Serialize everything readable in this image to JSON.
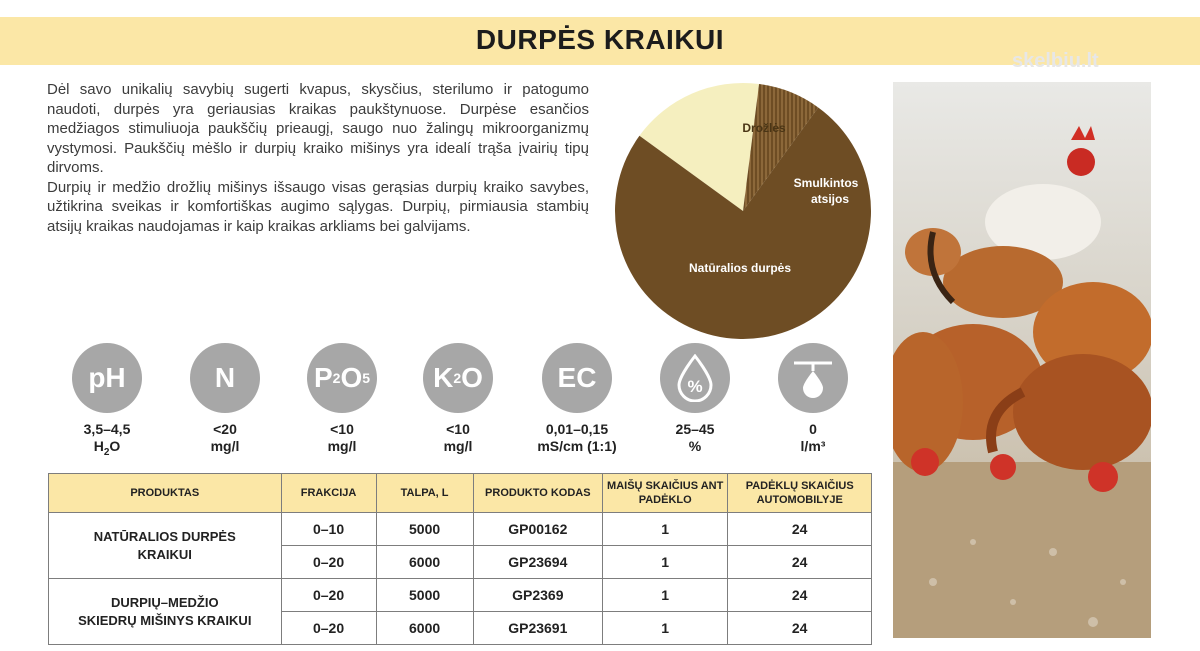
{
  "header": {
    "title": "DURPĖS KRAIKUI"
  },
  "watermark": "skelbiu.lt",
  "description": {
    "p1": "Dėl savo unikalių savybių sugerti kvapus, skysčius, sterilumo ir patogumo naudoti, durpės yra geriausias kraikas paukštynuose. Durpėse esančios medžiagos stimuliuoja paukščių prieaugį, saugo nuo žalingų mikroorganizmų vystymosi. Paukščių mėšlo ir durpių kraiko mišinys yra idealí trąša įvairių tipų dirvoms.",
    "p2": "Durpių ir medžio drožlių mišinys išsaugo visas gerąsias durpių kraiko savybes, užtikrina sveikas ir komfortiškas augimo sąlygas. Durpių, pirmiausia stambių atsijų kraikas naudojamas ir kaip kraikas arkliams bei galvijams."
  },
  "chart_data": {
    "type": "pie",
    "slices": [
      {
        "label": "Drožlės",
        "value": 17,
        "color": "#f5efbf"
      },
      {
        "label": "Smulkintos atsijos",
        "value": 8,
        "color": "#6e4d24"
      },
      {
        "label": "Natūralios durpės",
        "value": 75,
        "color": "#6e4d24"
      }
    ],
    "labels": {
      "drozles": "Drožlės",
      "atsijos_1": "Smulkintos",
      "atsijos_2": "atsijos",
      "durpes": "Natūralios durpės"
    }
  },
  "indicators": [
    {
      "symbol": "pH",
      "value": "3,5–4,5",
      "unit_main": "H",
      "unit_sub": "2",
      "unit_tail": "O"
    },
    {
      "symbol": "N",
      "value": "<20",
      "unit": "mg/l"
    },
    {
      "symbol": "P",
      "sub1": "2",
      "sym2": "O",
      "sub2": "5",
      "value": "<10",
      "unit": "mg/l"
    },
    {
      "symbol": "K",
      "sub1": "2",
      "sym2": "O",
      "value": "<10",
      "unit": "mg/l"
    },
    {
      "symbol": "EC",
      "value": "0,01–0,15",
      "unit": "mS/cm (1:1)"
    },
    {
      "symbol": "%",
      "icon": "drop-percent-icon",
      "value": "25–45",
      "unit": "%"
    },
    {
      "symbol": "",
      "icon": "sprinkler-drop-icon",
      "value": "0",
      "unit": "l/m³"
    }
  ],
  "table": {
    "headers": [
      "PRODUKTAS",
      "FRAKCIJA",
      "TALPA, L",
      "PRODUKTO KODAS",
      "MAIŠŲ SKAIČIUS ANT PADĖKLO",
      "PADĖKLŲ SKAIČIUS AUTOMOBILYJE"
    ],
    "groups": [
      {
        "name_1": "NATŪRALIOS DURPĖS",
        "name_2": "KRAIKUI",
        "rows": [
          [
            "0–10",
            "5000",
            "GP00162",
            "1",
            "24"
          ],
          [
            "0–20",
            "6000",
            "GP23694",
            "1",
            "24"
          ]
        ]
      },
      {
        "name_1": "DURPIŲ–MEDŽIO",
        "name_2": "SKIEDRŲ MIŠINYS KRAIKUI",
        "rows": [
          [
            "0–20",
            "5000",
            "GP2369",
            "1",
            "24"
          ],
          [
            "0–20",
            "6000",
            "GP23691",
            "1",
            "24"
          ]
        ]
      }
    ]
  },
  "colors": {
    "band": "#fbe7a6",
    "peat": "#6e4d24",
    "chips": "#f5efbf",
    "indicator": "#a7a7a7"
  }
}
